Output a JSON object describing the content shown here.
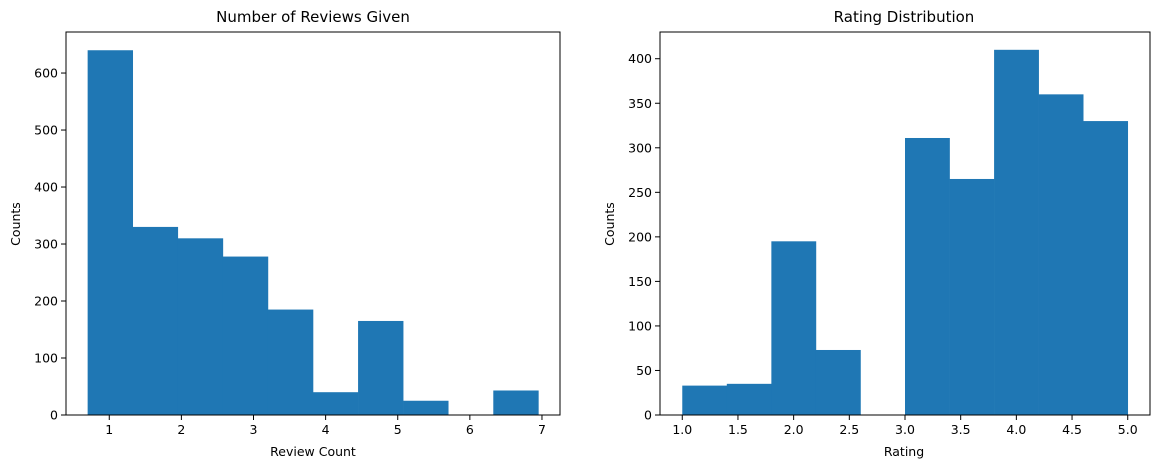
{
  "colors": {
    "bar": "#1f77b4",
    "axis": "#000000",
    "background": "#ffffff"
  },
  "chart_data": [
    {
      "type": "bar",
      "title": "Number of Reviews Given",
      "xlabel": "Review Count",
      "ylabel": "Counts",
      "bin_edges": [
        0.7,
        1.325,
        1.95,
        2.575,
        3.2,
        3.825,
        4.45,
        5.075,
        5.7,
        6.325,
        6.95
      ],
      "values": [
        640,
        330,
        310,
        278,
        185,
        40,
        165,
        25,
        0,
        43
      ],
      "xlim": [
        0.4,
        7.25
      ],
      "ylim": [
        0,
        672
      ],
      "xticks": [
        1,
        2,
        3,
        4,
        5,
        6,
        7
      ],
      "xtick_labels": [
        "1",
        "2",
        "3",
        "4",
        "5",
        "6",
        "7"
      ],
      "yticks": [
        0,
        100,
        200,
        300,
        400,
        500,
        600
      ],
      "ytick_labels": [
        "0",
        "100",
        "200",
        "300",
        "400",
        "500",
        "600"
      ],
      "grid": false,
      "legend": "none"
    },
    {
      "type": "bar",
      "title": "Rating Distribution",
      "xlabel": "Rating",
      "ylabel": "Counts",
      "bin_edges": [
        1.0,
        1.4,
        1.8,
        2.2,
        2.6,
        3.0,
        3.4,
        3.8,
        4.2,
        4.6,
        5.0
      ],
      "values": [
        33,
        35,
        195,
        73,
        0,
        311,
        265,
        410,
        360,
        330
      ],
      "xlim": [
        0.8,
        5.2
      ],
      "ylim": [
        0,
        430
      ],
      "xticks": [
        1.0,
        1.5,
        2.0,
        2.5,
        3.0,
        3.5,
        4.0,
        4.5,
        5.0
      ],
      "xtick_labels": [
        "1.0",
        "1.5",
        "2.0",
        "2.5",
        "3.0",
        "3.5",
        "4.0",
        "4.5",
        "5.0"
      ],
      "yticks": [
        0,
        50,
        100,
        150,
        200,
        250,
        300,
        350,
        400
      ],
      "ytick_labels": [
        "0",
        "50",
        "100",
        "150",
        "200",
        "250",
        "300",
        "350",
        "400"
      ],
      "grid": false,
      "legend": "none"
    }
  ]
}
